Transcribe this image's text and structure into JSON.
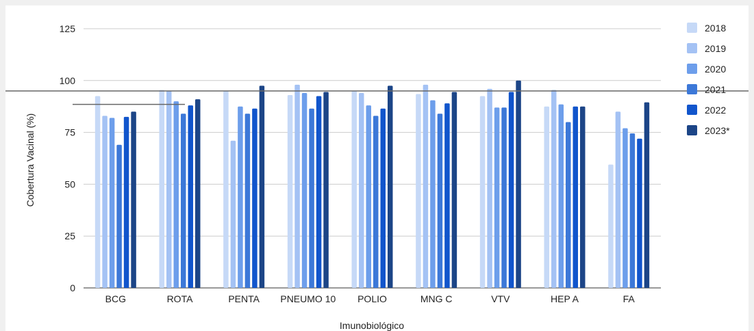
{
  "chart_data": {
    "type": "bar",
    "title": "",
    "xlabel": "Imunobiológico",
    "ylabel": "Cobertura Vacinal (%)",
    "ylim": [
      0,
      125
    ],
    "yticks": [
      0,
      25,
      50,
      75,
      100,
      125
    ],
    "grid": true,
    "legend_position": "right",
    "categories": [
      "BCG",
      "ROTA",
      "PENTA",
      "PNEUMO 10",
      "POLIO",
      "MNG C",
      "VTV",
      "HEP A",
      "FA"
    ],
    "series": [
      {
        "name": "2018",
        "color": "#c6d9f7",
        "values": [
          92.5,
          95.5,
          95.0,
          93.0,
          95.0,
          93.5,
          92.5,
          87.5,
          59.5
        ]
      },
      {
        "name": "2019",
        "color": "#a4c2f4",
        "values": [
          83.0,
          95.0,
          71.0,
          98.0,
          94.0,
          98.0,
          96.0,
          95.5,
          85.0
        ]
      },
      {
        "name": "2020",
        "color": "#6d9eeb",
        "values": [
          82.0,
          90.0,
          87.5,
          94.0,
          88.0,
          90.5,
          87.0,
          88.5,
          77.0
        ]
      },
      {
        "name": "2021",
        "color": "#3c78d8",
        "values": [
          69.0,
          84.0,
          84.0,
          86.5,
          83.0,
          84.0,
          87.0,
          80.0,
          74.5
        ]
      },
      {
        "name": "2022",
        "color": "#1155cc",
        "values": [
          82.5,
          88.0,
          86.5,
          92.5,
          86.5,
          89.0,
          94.5,
          87.5,
          72.0
        ]
      },
      {
        "name": "2023*",
        "color": "#1c4587",
        "values": [
          85.0,
          91.0,
          97.5,
          94.5,
          97.5,
          94.5,
          100.0,
          87.5,
          89.5
        ]
      }
    ],
    "reference_lines": [
      {
        "value": 95,
        "color": "#666666"
      },
      {
        "value": 88.5,
        "color": "#666666"
      }
    ]
  }
}
